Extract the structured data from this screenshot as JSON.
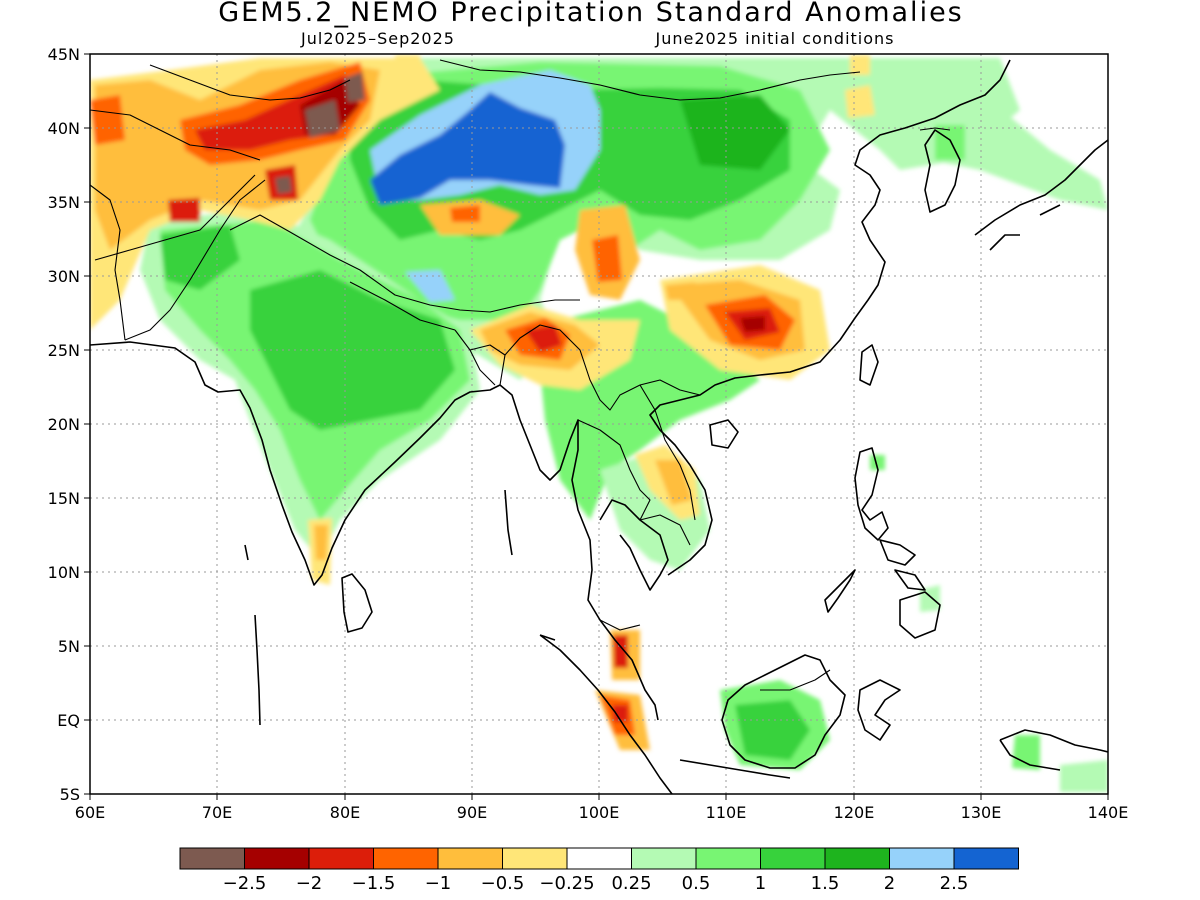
{
  "title": "GEM5.2_NEMO Precipitation Standard Anomalies",
  "subtitle_left": "Jul2025–Sep2025",
  "subtitle_right": "June2025 initial conditions",
  "map": {
    "lon_range": [
      60,
      140
    ],
    "lat_range": [
      -5,
      45
    ],
    "lon_ticks": [
      "60E",
      "70E",
      "80E",
      "90E",
      "100E",
      "110E",
      "120E",
      "130E",
      "140E"
    ],
    "lat_ticks": [
      "5S",
      "EQ",
      "5N",
      "10N",
      "15N",
      "20N",
      "25N",
      "30N",
      "35N",
      "40N",
      "45N"
    ],
    "gridlines": "dotted"
  },
  "colorbar": {
    "colors": [
      "#7d5a50",
      "#a50000",
      "#dc1e0a",
      "#ff6400",
      "#ffbe3c",
      "#ffe678",
      "#ffffff",
      "#b4fab4",
      "#78f573",
      "#37d23c",
      "#1eb41e",
      "#96d2fa",
      "#1464d2"
    ],
    "labels": [
      "−2.5",
      "−2",
      "−1.5",
      "−1",
      "−0.5",
      "−0.25",
      "0.25",
      "0.5",
      "1",
      "1.5",
      "2",
      "2.5"
    ]
  },
  "features": [
    {
      "name": "positive-anomaly-mongolia-tarim",
      "value": 2.5,
      "lon": 92,
      "lat": 38,
      "color": "#1464d2"
    },
    {
      "name": "positive-anomaly-india",
      "value": 1.5,
      "lon": 79,
      "lat": 22,
      "color": "#37d23c"
    },
    {
      "name": "positive-anomaly-borneo",
      "value": 1.5,
      "lon": 112,
      "lat": -1,
      "color": "#37d23c"
    },
    {
      "name": "negative-anomaly-south-china",
      "value": -2,
      "lon": 112,
      "lat": 27,
      "color": "#a50000"
    },
    {
      "name": "negative-anomaly-northeast-india",
      "value": -1.5,
      "lon": 96,
      "lat": 26,
      "color": "#dc1e0a"
    },
    {
      "name": "negative-anomaly-pamir-tianshan",
      "value": -2.5,
      "lon": 78,
      "lat": 40,
      "color": "#7d5a50"
    },
    {
      "name": "negative-anomaly-sumatra",
      "value": -1.5,
      "lon": 101,
      "lat": 0,
      "color": "#dc1e0a"
    }
  ]
}
